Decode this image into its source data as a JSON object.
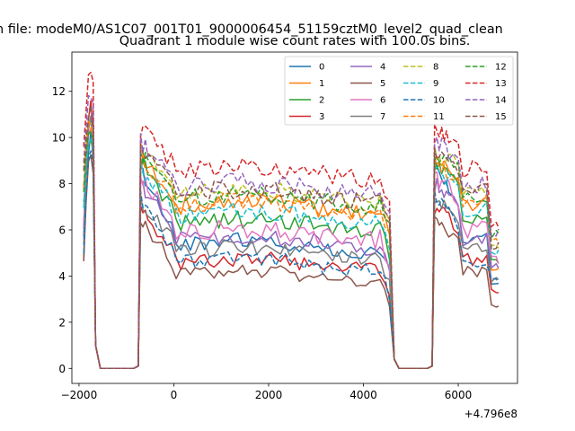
{
  "figure": {
    "suptitle": "n file: modeM0/AS1C07_001T01_9000006454_51159cztM0_level2_quad_clean",
    "offset_label": "+4.796e8"
  },
  "chart_data": {
    "type": "line",
    "title": "Quadrant 1 module wise count rates with 100.0s bins.",
    "xlabel": "",
    "ylabel": "",
    "x_offset": 479600000,
    "xlim": [
      -2150,
      7250
    ],
    "ylim": [
      -0.65,
      13.7
    ],
    "xticks": [
      -2000,
      0,
      2000,
      4000,
      6000
    ],
    "yticks": [
      0,
      2,
      4,
      6,
      8,
      10,
      12
    ],
    "grid": false,
    "legend": {
      "placement": "top-right",
      "columns": 4
    },
    "segments": [
      {
        "start": -1900,
        "end": -1650,
        "step": 50
      },
      {
        "start": -1650,
        "end": -750,
        "step": 100,
        "zero": true
      },
      {
        "start": -750,
        "end": -550,
        "step": 50
      },
      {
        "start": -550,
        "end": 4550,
        "step": 100
      },
      {
        "start": 4550,
        "end": 4650,
        "step": 100
      },
      {
        "start": 4650,
        "end": 5450,
        "step": 100,
        "zero": true
      },
      {
        "start": 5450,
        "end": 5800,
        "step": 50
      },
      {
        "start": 5800,
        "end": 6850,
        "step": 100
      }
    ],
    "series": [
      {
        "name": "0",
        "color": "#1f77b4",
        "dash": "solid",
        "level": 5.3,
        "burst": 10.0,
        "flare": 8.6,
        "egress": 5.6,
        "end": 3.6,
        "noise": 0.35
      },
      {
        "name": "1",
        "color": "#ff7f0e",
        "dash": "solid",
        "level": 7.0,
        "burst": 10.5,
        "flare": 9.0,
        "egress": 7.2,
        "end": 4.3,
        "noise": 0.4
      },
      {
        "name": "2",
        "color": "#2ca02c",
        "dash": "solid",
        "level": 6.2,
        "burst": 10.2,
        "flare": 8.9,
        "egress": 6.4,
        "end": 4.6,
        "noise": 0.4
      },
      {
        "name": "3",
        "color": "#d62728",
        "dash": "solid",
        "level": 4.5,
        "burst": 11.5,
        "flare": 7.0,
        "egress": 4.6,
        "end": 3.4,
        "noise": 0.35
      },
      {
        "name": "4",
        "color": "#9467bd",
        "dash": "solid",
        "level": 5.5,
        "burst": 11.0,
        "flare": 8.0,
        "egress": 5.7,
        "end": 4.4,
        "noise": 0.4
      },
      {
        "name": "5",
        "color": "#8c564b",
        "dash": "solid",
        "level": 4.0,
        "burst": 9.5,
        "flare": 6.5,
        "egress": 4.1,
        "end": 2.7,
        "noise": 0.3
      },
      {
        "name": "6",
        "color": "#e377c2",
        "dash": "solid",
        "level": 5.8,
        "burst": 10.8,
        "flare": 8.3,
        "egress": 6.0,
        "end": 4.7,
        "noise": 0.4
      },
      {
        "name": "7",
        "color": "#7f7f7f",
        "dash": "solid",
        "level": 5.0,
        "burst": 10.6,
        "flare": 7.3,
        "egress": 5.1,
        "end": 3.9,
        "noise": 0.35
      },
      {
        "name": "8",
        "color": "#bcbd22",
        "dash": "dashed",
        "level": 7.5,
        "burst": 10.9,
        "flare": 9.4,
        "egress": 7.7,
        "end": 5.2,
        "noise": 0.4
      },
      {
        "name": "9",
        "color": "#17becf",
        "dash": "dashed",
        "level": 6.6,
        "burst": 10.3,
        "flare": 8.7,
        "egress": 6.8,
        "end": 5.0,
        "noise": 0.4
      },
      {
        "name": "10",
        "color": "#1f77b4",
        "dash": "dashed",
        "level": 4.5,
        "burst": 9.8,
        "flare": 7.4,
        "egress": 4.6,
        "end": 3.8,
        "noise": 0.35
      },
      {
        "name": "11",
        "color": "#ff7f0e",
        "dash": "dashed",
        "level": 7.0,
        "burst": 10.7,
        "flare": 9.0,
        "egress": 7.2,
        "end": 5.6,
        "noise": 0.4
      },
      {
        "name": "12",
        "color": "#2ca02c",
        "dash": "dashed",
        "level": 7.3,
        "burst": 10.6,
        "flare": 9.3,
        "egress": 7.5,
        "end": 5.8,
        "noise": 0.4
      },
      {
        "name": "13",
        "color": "#d62728",
        "dash": "dashed",
        "level": 8.5,
        "burst": 13.1,
        "flare": 10.3,
        "egress": 8.7,
        "end": 6.3,
        "noise": 0.4
      },
      {
        "name": "14",
        "color": "#9467bd",
        "dash": "dashed",
        "level": 7.8,
        "burst": 12.0,
        "flare": 9.8,
        "egress": 8.0,
        "end": 5.9,
        "noise": 0.4
      },
      {
        "name": "15",
        "color": "#8c564b",
        "dash": "dashed",
        "level": 7.5,
        "burst": 11.2,
        "flare": 9.4,
        "egress": 7.7,
        "end": 5.3,
        "noise": 0.4
      }
    ]
  }
}
